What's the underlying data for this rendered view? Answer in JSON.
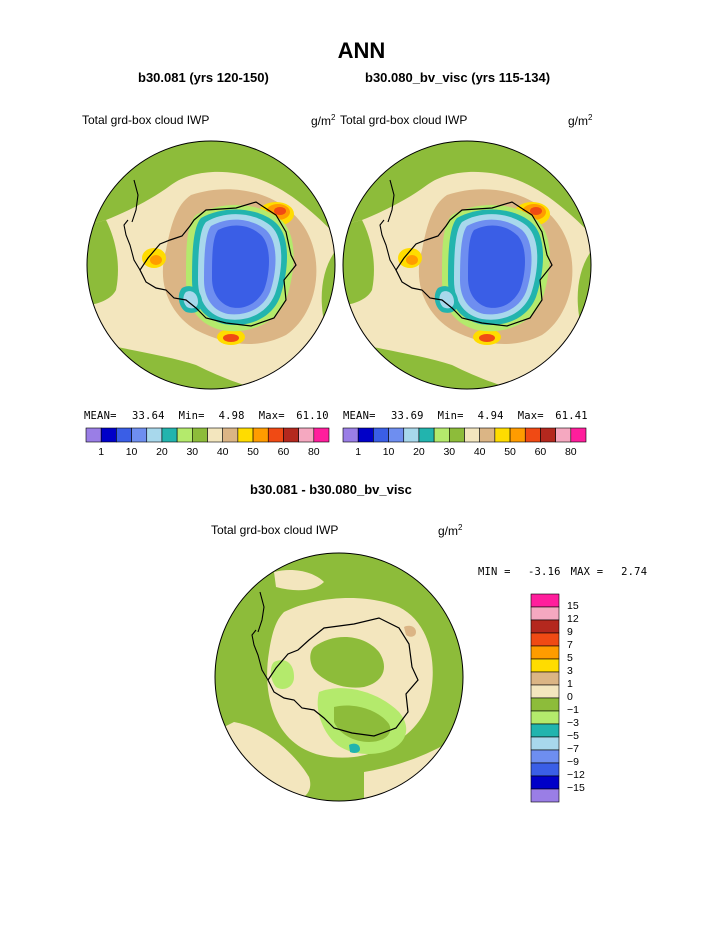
{
  "page": {
    "title": "ANN",
    "diff_title": "b30.081 - b30.080_bv_visc"
  },
  "colors": {
    "land_green": "#8dbc3a",
    "lightgreen": "#b4ea6c",
    "teal": "#22b4ae",
    "lightblue": "#a8d8ec",
    "blue": "#6e8ef0",
    "royal": "#3a5ee6",
    "navy": "#0000c8",
    "purple": "#9a7ee6",
    "cream": "#f3e6be",
    "tan": "#dbb585",
    "yellow": "#ffdc00",
    "orange": "#ff9c00",
    "redorange": "#f04a14",
    "darkred": "#b4281e",
    "pink": "#f5a8c0",
    "magenta": "#ff1e9c"
  },
  "chart_data": [
    {
      "type": "heatmap",
      "projection": "south-polar-stereographic",
      "case_title": "b30.081 (yrs 120-150)",
      "variable": "Total grd-box cloud IWP",
      "units": "g/m",
      "units_sup": "2",
      "stats": {
        "mean": "33.64",
        "min": "4.98",
        "max": "61.10"
      },
      "stats_labels": {
        "mean": "MEAN=",
        "min": "Min=",
        "max": "Max="
      },
      "legend_position": "bottom",
      "colorbar": {
        "levels": [
          "1",
          "10",
          "20",
          "30",
          "40",
          "50",
          "60",
          "80"
        ],
        "colors": [
          "#9a7ee6",
          "#0000c8",
          "#3a5ee6",
          "#6e8ef0",
          "#a8d8ec",
          "#22b4ae",
          "#b4ea6c",
          "#8dbc3a",
          "#f3e6be",
          "#dbb585",
          "#ffdc00",
          "#ff9c00",
          "#f04a14",
          "#b4281e",
          "#f5a8c0",
          "#ff1e9c"
        ]
      }
    },
    {
      "type": "heatmap",
      "projection": "south-polar-stereographic",
      "case_title": "b30.080_bv_visc (yrs 115-134)",
      "variable": "Total grd-box cloud IWP",
      "units": "g/m",
      "units_sup": "2",
      "stats": {
        "mean": "33.69",
        "min": "4.94",
        "max": "61.41"
      },
      "stats_labels": {
        "mean": "MEAN=",
        "min": "Min=",
        "max": "Max="
      },
      "legend_position": "bottom",
      "colorbar": {
        "levels": [
          "1",
          "10",
          "20",
          "30",
          "40",
          "50",
          "60",
          "80"
        ],
        "colors": [
          "#9a7ee6",
          "#0000c8",
          "#3a5ee6",
          "#6e8ef0",
          "#a8d8ec",
          "#22b4ae",
          "#b4ea6c",
          "#8dbc3a",
          "#f3e6be",
          "#dbb585",
          "#ffdc00",
          "#ff9c00",
          "#f04a14",
          "#b4281e",
          "#f5a8c0",
          "#ff1e9c"
        ]
      }
    },
    {
      "type": "heatmap",
      "projection": "south-polar-stereographic",
      "case_title": "b30.081 - b30.080_bv_visc",
      "variable": "Total grd-box cloud IWP",
      "units": "g/m",
      "units_sup": "2",
      "stats": {
        "min": "-3.16",
        "max": "2.74"
      },
      "stats_labels": {
        "min": "MIN =",
        "max": "MAX ="
      },
      "legend_position": "right",
      "colorbar": {
        "levels": [
          "15",
          "12",
          "9",
          "7",
          "5",
          "3",
          "1",
          "0",
          "−1",
          "−3",
          "−5",
          "−7",
          "−9",
          "−12",
          "−15"
        ],
        "colors": [
          "#ff1e9c",
          "#f5a8c0",
          "#b4281e",
          "#f04a14",
          "#ff9c00",
          "#ffdc00",
          "#dbb585",
          "#f3e6be",
          "#8dbc3a",
          "#b4ea6c",
          "#22b4ae",
          "#a8d8ec",
          "#6e8ef0",
          "#3a5ee6",
          "#0000c8",
          "#9a7ee6"
        ]
      }
    }
  ]
}
